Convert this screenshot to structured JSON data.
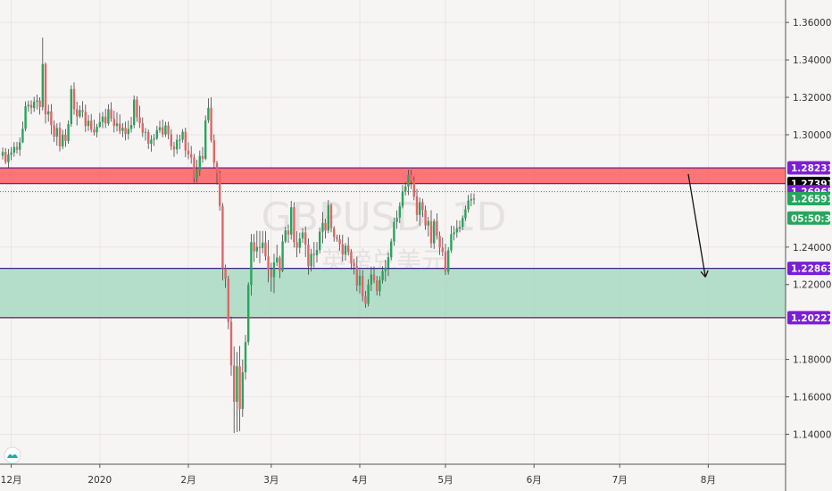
{
  "chart_data": {
    "type": "candlestick",
    "title": "",
    "symbol": "GBPUSD",
    "timeframe": "1D",
    "watermark_cn": "英镑兑美元",
    "xlabel": "",
    "ylabel": "",
    "ylim": [
      1.124,
      1.372
    ],
    "grid": true,
    "y_ticks": [
      {
        "v": 1.36,
        "label": "1.36000"
      },
      {
        "v": 1.34,
        "label": "1.34000"
      },
      {
        "v": 1.32,
        "label": "1.32000"
      },
      {
        "v": 1.3,
        "label": "1.30000"
      },
      {
        "v": 1.24,
        "label": "1.24000"
      },
      {
        "v": 1.22,
        "label": "1.22000"
      },
      {
        "v": 1.18,
        "label": "1.18000"
      },
      {
        "v": 1.16,
        "label": "1.16000"
      },
      {
        "v": 1.14,
        "label": "1.14000"
      }
    ],
    "x_ticks": [
      {
        "d": 3,
        "label": "12月"
      },
      {
        "d": 34,
        "label": "2020"
      },
      {
        "d": 65,
        "label": "2月"
      },
      {
        "d": 94,
        "label": "3月"
      },
      {
        "d": 125,
        "label": "4月"
      },
      {
        "d": 155,
        "label": "5月"
      },
      {
        "d": 186,
        "label": "6月"
      },
      {
        "d": 216,
        "label": "7月"
      },
      {
        "d": 247,
        "label": "8月"
      }
    ],
    "zones": [
      {
        "name": "resistance",
        "from": 1.27391,
        "to": 1.28231,
        "color": "#ff5e5e"
      },
      {
        "name": "support",
        "from": 1.20227,
        "to": 1.22863,
        "color": "#a8d9c1"
      }
    ],
    "hlines": [
      {
        "v": 1.26965,
        "color": "#2e8b57",
        "style": "dotted"
      }
    ],
    "price_labels": [
      {
        "v": 1.28231,
        "label": "1.28231",
        "bg": "#7b1fd6",
        "fg": "#ffffff"
      },
      {
        "v": 1.27391,
        "label": "1.27391",
        "bg": "#000000",
        "fg": "#ffffff"
      },
      {
        "v": 1.26965,
        "label": "1.26965",
        "bg": "#7b1fd6",
        "fg": "#ffffff"
      },
      {
        "v": 1.26591,
        "label": "1.26591",
        "bg": "#26a65b",
        "fg": "#ffffff"
      },
      {
        "v": 1.2555,
        "label": "05:50:37",
        "bg": "#26a65b",
        "fg": "#ffffff"
      },
      {
        "v": 1.22863,
        "label": "1.22863",
        "bg": "#7b1fd6",
        "fg": "#ffffff"
      },
      {
        "v": 1.20227,
        "label": "1.20227",
        "bg": "#7b1fd6",
        "fg": "#ffffff"
      }
    ],
    "arrow": {
      "from": [
        240,
        1.279
      ],
      "to": [
        246,
        1.224
      ]
    },
    "colors": {
      "up": "#26a65b",
      "down": "#e06666",
      "wick": "#444444",
      "line": "#4b1e8c",
      "axis": "#555555"
    },
    "candles": [
      [
        1.2888,
        1.2932,
        1.2868,
        1.2908
      ],
      [
        1.2908,
        1.2929,
        1.2843,
        1.2854
      ],
      [
        1.2854,
        1.2924,
        1.2825,
        1.2894
      ],
      [
        1.2894,
        1.2935,
        1.2864,
        1.2905
      ],
      [
        1.2905,
        1.2961,
        1.2883,
        1.2935
      ],
      [
        1.2935,
        1.2962,
        1.2899,
        1.292
      ],
      [
        1.292,
        1.2986,
        1.2887,
        1.296
      ],
      [
        1.296,
        1.3071,
        1.2956,
        1.3032
      ],
      [
        1.3032,
        1.3178,
        1.302,
        1.3152
      ],
      [
        1.3152,
        1.3182,
        1.3123,
        1.316
      ],
      [
        1.316,
        1.3184,
        1.311,
        1.3143
      ],
      [
        1.3143,
        1.3203,
        1.3122,
        1.3177
      ],
      [
        1.3177,
        1.3215,
        1.3136,
        1.3183
      ],
      [
        1.3183,
        1.32,
        1.3108,
        1.3148
      ],
      [
        1.3148,
        1.3519,
        1.313,
        1.3378
      ],
      [
        1.3378,
        1.3387,
        1.306,
        1.3109
      ],
      [
        1.3109,
        1.3161,
        1.307,
        1.3125
      ],
      [
        1.3125,
        1.3164,
        1.3002,
        1.3051
      ],
      [
        1.3051,
        1.3076,
        1.2962,
        1.299
      ],
      [
        1.299,
        1.3061,
        1.2942,
        1.3036
      ],
      [
        1.3036,
        1.3066,
        1.2911,
        1.2938
      ],
      [
        1.2938,
        1.3026,
        1.2923,
        1.3001
      ],
      [
        1.3001,
        1.3031,
        1.2935,
        1.2967
      ],
      [
        1.2967,
        1.3077,
        1.2952,
        1.3057
      ],
      [
        1.3057,
        1.3265,
        1.3043,
        1.3244
      ],
      [
        1.3244,
        1.328,
        1.3107,
        1.3136
      ],
      [
        1.3136,
        1.3177,
        1.305,
        1.3098
      ],
      [
        1.3098,
        1.3157,
        1.3089,
        1.3132
      ],
      [
        1.3132,
        1.318,
        1.3093,
        1.3122
      ],
      [
        1.3122,
        1.3161,
        1.3015,
        1.3047
      ],
      [
        1.3047,
        1.3106,
        1.302,
        1.3075
      ],
      [
        1.3075,
        1.3111,
        1.3013,
        1.3028
      ],
      [
        1.3028,
        1.3081,
        1.2996,
        1.3013
      ],
      [
        1.3013,
        1.3058,
        1.2986,
        1.3043
      ],
      [
        1.3043,
        1.3117,
        1.3037,
        1.3068
      ],
      [
        1.3068,
        1.3122,
        1.3035,
        1.3097
      ],
      [
        1.3097,
        1.3139,
        1.3036,
        1.306
      ],
      [
        1.306,
        1.3163,
        1.3049,
        1.3136
      ],
      [
        1.3136,
        1.3174,
        1.307,
        1.3086
      ],
      [
        1.3086,
        1.3128,
        1.3012,
        1.3047
      ],
      [
        1.3047,
        1.312,
        1.3018,
        1.306
      ],
      [
        1.306,
        1.3109,
        1.3004,
        1.302
      ],
      [
        1.302,
        1.3062,
        1.2987,
        1.3037
      ],
      [
        1.3037,
        1.307,
        1.297,
        1.3004
      ],
      [
        1.3004,
        1.3076,
        1.2974,
        1.3031
      ],
      [
        1.3031,
        1.3095,
        1.3012,
        1.3052
      ],
      [
        1.3052,
        1.321,
        1.3035,
        1.3188
      ],
      [
        1.3188,
        1.3206,
        1.3069,
        1.3093
      ],
      [
        1.3093,
        1.3155,
        1.3036,
        1.3062
      ],
      [
        1.3062,
        1.3092,
        1.2988,
        1.3011
      ],
      [
        1.3011,
        1.3037,
        1.2969,
        1.3015
      ],
      [
        1.3015,
        1.3028,
        1.2924,
        1.2952
      ],
      [
        1.2952,
        1.2998,
        1.291,
        1.2974
      ],
      [
        1.2974,
        1.3004,
        1.2941,
        1.298
      ],
      [
        1.298,
        1.3048,
        1.2972,
        1.3025
      ],
      [
        1.3025,
        1.3075,
        1.301,
        1.304
      ],
      [
        1.304,
        1.3081,
        1.2986,
        1.3002
      ],
      [
        1.3002,
        1.3069,
        1.2988,
        1.305
      ],
      [
        1.305,
        1.307,
        1.2976,
        1.3003
      ],
      [
        1.3003,
        1.303,
        1.2918,
        1.2938
      ],
      [
        1.2938,
        1.2962,
        1.2882,
        1.2922
      ],
      [
        1.2922,
        1.3003,
        1.2897,
        1.2973
      ],
      [
        1.2973,
        1.3,
        1.2923,
        1.2974
      ],
      [
        1.2974,
        1.303,
        1.2958,
        1.3016
      ],
      [
        1.3016,
        1.3038,
        1.288,
        1.2916
      ],
      [
        1.2916,
        1.296,
        1.2869,
        1.2895
      ],
      [
        1.2895,
        1.294,
        1.2846,
        1.2878
      ],
      [
        1.2878,
        1.2898,
        1.2744,
        1.277
      ],
      [
        1.277,
        1.2867,
        1.2744,
        1.2809
      ],
      [
        1.2809,
        1.2916,
        1.2781,
        1.2887
      ],
      [
        1.2887,
        1.2934,
        1.285,
        1.2872
      ],
      [
        1.2872,
        1.3103,
        1.2864,
        1.3077
      ],
      [
        1.3077,
        1.3195,
        1.3063,
        1.3144
      ],
      [
        1.3144,
        1.3201,
        1.2959,
        1.2971
      ],
      [
        1.2971,
        1.3002,
        1.2818,
        1.285
      ],
      [
        1.285,
        1.2861,
        1.2734,
        1.2795
      ],
      [
        1.2795,
        1.2808,
        1.2594,
        1.262
      ],
      [
        1.262,
        1.2635,
        1.2222,
        1.2286
      ],
      [
        1.2286,
        1.2306,
        1.2182,
        1.2231
      ],
      [
        1.2231,
        1.2247,
        1.1961,
        1.2001
      ],
      [
        1.2001,
        1.2028,
        1.1713,
        1.1768
      ],
      [
        1.1768,
        1.1869,
        1.1406,
        1.1574
      ],
      [
        1.1574,
        1.1839,
        1.1412,
        1.1763
      ],
      [
        1.1763,
        1.1872,
        1.1417,
        1.1535
      ],
      [
        1.1535,
        1.1799,
        1.1493,
        1.1731
      ],
      [
        1.1731,
        1.1931,
        1.1692,
        1.1893
      ],
      [
        1.1893,
        1.2212,
        1.1876,
        1.2198
      ],
      [
        1.2198,
        1.247,
        1.2141,
        1.2426
      ],
      [
        1.2426,
        1.2469,
        1.2321,
        1.2377
      ],
      [
        1.2377,
        1.2487,
        1.2342,
        1.2401
      ],
      [
        1.2401,
        1.2486,
        1.2315,
        1.2395
      ],
      [
        1.2395,
        1.2486,
        1.2367,
        1.2424
      ],
      [
        1.2424,
        1.2485,
        1.2328,
        1.235
      ],
      [
        1.235,
        1.2437,
        1.2212,
        1.2281
      ],
      [
        1.2281,
        1.2317,
        1.2162,
        1.2239
      ],
      [
        1.2239,
        1.2365,
        1.2154,
        1.2318
      ],
      [
        1.2318,
        1.2413,
        1.2298,
        1.2344
      ],
      [
        1.2344,
        1.2354,
        1.2234,
        1.2273
      ],
      [
        1.2273,
        1.2467,
        1.2266,
        1.243
      ],
      [
        1.243,
        1.2509,
        1.242,
        1.2489
      ],
      [
        1.2489,
        1.252,
        1.2423,
        1.2467
      ],
      [
        1.2467,
        1.2647,
        1.244,
        1.2613
      ],
      [
        1.2613,
        1.264,
        1.2397,
        1.2426
      ],
      [
        1.2426,
        1.2486,
        1.2346,
        1.2396
      ],
      [
        1.2396,
        1.2477,
        1.2366,
        1.2446
      ],
      [
        1.2446,
        1.2501,
        1.2423,
        1.2478
      ],
      [
        1.2478,
        1.2511,
        1.2347,
        1.2413
      ],
      [
        1.2413,
        1.2446,
        1.2252,
        1.2297
      ],
      [
        1.2297,
        1.239,
        1.227,
        1.2364
      ],
      [
        1.2364,
        1.2427,
        1.2291,
        1.2357
      ],
      [
        1.2357,
        1.2427,
        1.2318,
        1.2385
      ],
      [
        1.2385,
        1.2505,
        1.2367,
        1.2482
      ],
      [
        1.2482,
        1.2588,
        1.242,
        1.2529
      ],
      [
        1.2529,
        1.2551,
        1.2446,
        1.2488
      ],
      [
        1.2488,
        1.2652,
        1.2474,
        1.2625
      ],
      [
        1.2625,
        1.2633,
        1.2479,
        1.2501
      ],
      [
        1.2501,
        1.2512,
        1.2429,
        1.2453
      ],
      [
        1.2453,
        1.2467,
        1.2429,
        1.2443
      ],
      [
        1.2443,
        1.2466,
        1.2381,
        1.2416
      ],
      [
        1.2416,
        1.2466,
        1.2323,
        1.236
      ],
      [
        1.236,
        1.2421,
        1.2327,
        1.2408
      ],
      [
        1.2408,
        1.2453,
        1.2356,
        1.2373
      ],
      [
        1.2373,
        1.2388,
        1.228,
        1.2314
      ],
      [
        1.2314,
        1.2339,
        1.2254,
        1.2298
      ],
      [
        1.2298,
        1.2349,
        1.2164,
        1.2195
      ],
      [
        1.2195,
        1.2279,
        1.2152,
        1.2246
      ],
      [
        1.2246,
        1.2277,
        1.211,
        1.2137
      ],
      [
        1.2137,
        1.2166,
        1.2076,
        1.2098
      ],
      [
        1.2098,
        1.2228,
        1.2083,
        1.22
      ],
      [
        1.22,
        1.2296,
        1.2165,
        1.2253
      ],
      [
        1.2253,
        1.2297,
        1.2207,
        1.2222
      ],
      [
        1.2222,
        1.2246,
        1.2142,
        1.2164
      ],
      [
        1.2164,
        1.2244,
        1.2138,
        1.2223
      ],
      [
        1.2223,
        1.2298,
        1.2205,
        1.2272
      ],
      [
        1.2272,
        1.2332,
        1.2217,
        1.229
      ],
      [
        1.229,
        1.2372,
        1.2245,
        1.2346
      ],
      [
        1.2346,
        1.2445,
        1.233,
        1.243
      ],
      [
        1.243,
        1.2558,
        1.2407,
        1.2534
      ],
      [
        1.2534,
        1.2596,
        1.2497,
        1.2557
      ],
      [
        1.2557,
        1.2639,
        1.2528,
        1.2619
      ],
      [
        1.2619,
        1.2732,
        1.2607,
        1.2698
      ],
      [
        1.2698,
        1.2747,
        1.2676,
        1.2724
      ],
      [
        1.2724,
        1.2814,
        1.2678,
        1.2785
      ],
      [
        1.2785,
        1.2812,
        1.2711,
        1.2755
      ],
      [
        1.2755,
        1.2777,
        1.265,
        1.267
      ],
      [
        1.267,
        1.271,
        1.2538,
        1.2572
      ],
      [
        1.2572,
        1.2665,
        1.2514,
        1.264
      ],
      [
        1.264,
        1.2659,
        1.2561,
        1.2598
      ],
      [
        1.2598,
        1.2621,
        1.2492,
        1.2515
      ],
      [
        1.2515,
        1.2561,
        1.2457,
        1.2539
      ],
      [
        1.2539,
        1.2597,
        1.2395,
        1.242
      ],
      [
        1.242,
        1.2551,
        1.239,
        1.2539
      ],
      [
        1.2539,
        1.258,
        1.244,
        1.246
      ],
      [
        1.246,
        1.2483,
        1.2358,
        1.2397
      ],
      [
        1.2397,
        1.2451,
        1.2351,
        1.2376
      ],
      [
        1.2376,
        1.2418,
        1.2251,
        1.2268
      ],
      [
        1.2268,
        1.24,
        1.2253,
        1.2383
      ],
      [
        1.2383,
        1.2515,
        1.2369,
        1.2469
      ],
      [
        1.2469,
        1.2513,
        1.2436,
        1.2478
      ],
      [
        1.2478,
        1.2544,
        1.245,
        1.25
      ],
      [
        1.25,
        1.2542,
        1.2478,
        1.2508
      ],
      [
        1.2508,
        1.2569,
        1.249,
        1.2555
      ],
      [
        1.2555,
        1.2621,
        1.254,
        1.2601
      ],
      [
        1.2601,
        1.2679,
        1.2585,
        1.2649
      ],
      [
        1.2649,
        1.2688,
        1.2618,
        1.2656
      ],
      [
        1.2656,
        1.2687,
        1.2627,
        1.2659
      ]
    ],
    "candle_start_d": 0
  }
}
